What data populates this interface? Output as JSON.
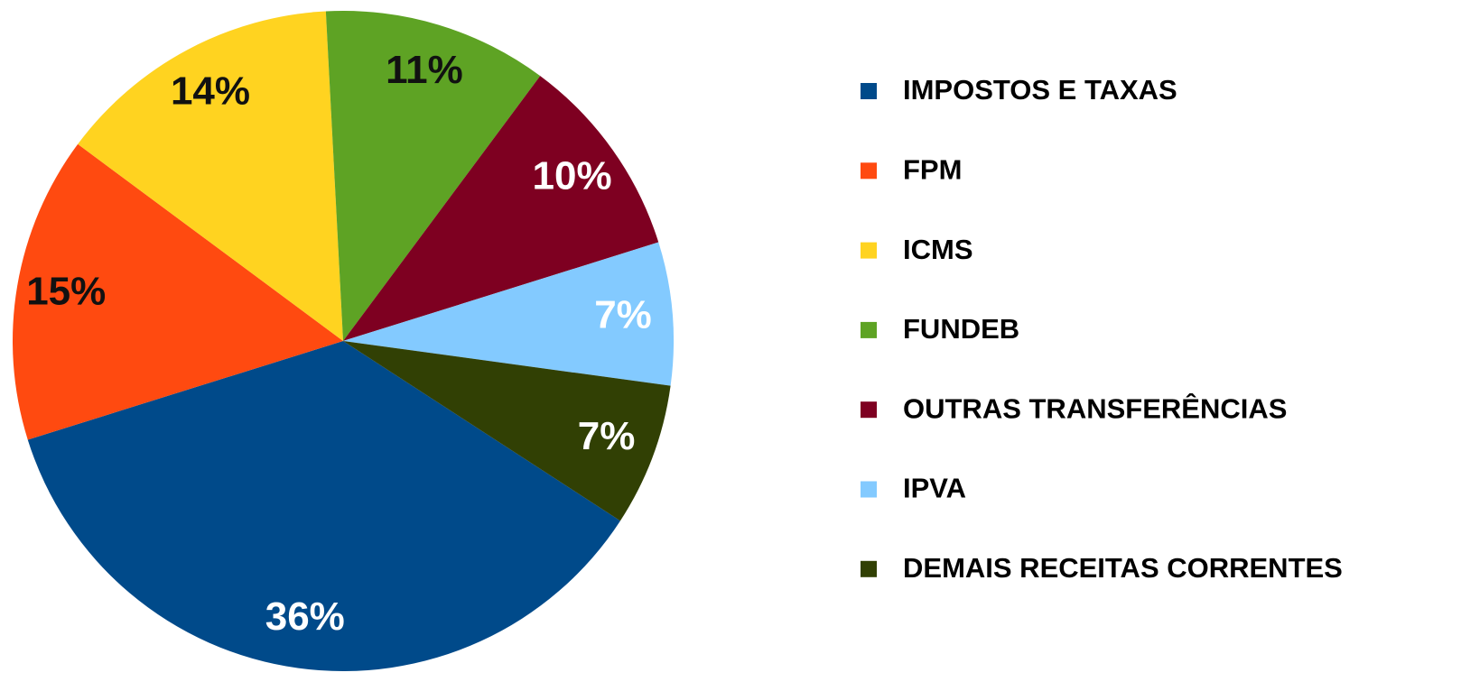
{
  "chart_data": {
    "type": "pie",
    "categories": [
      "IMPOSTOS E TAXAS",
      "FPM",
      "ICMS",
      "FUNDEB",
      "OUTRAS TRANSFERÊNCIAS",
      "IPVA",
      "DEMAIS RECEITAS CORRENTES"
    ],
    "values": [
      36,
      15,
      14,
      11,
      10,
      7,
      7
    ],
    "value_labels": [
      "36%",
      "15%",
      "14%",
      "11%",
      "10%",
      "7%",
      "7%"
    ],
    "colors": [
      "#004a8a",
      "#ff4a10",
      "#ffd320",
      "#5ea324",
      "#7e0021",
      "#83caff",
      "#314004"
    ],
    "legend": "right"
  }
}
